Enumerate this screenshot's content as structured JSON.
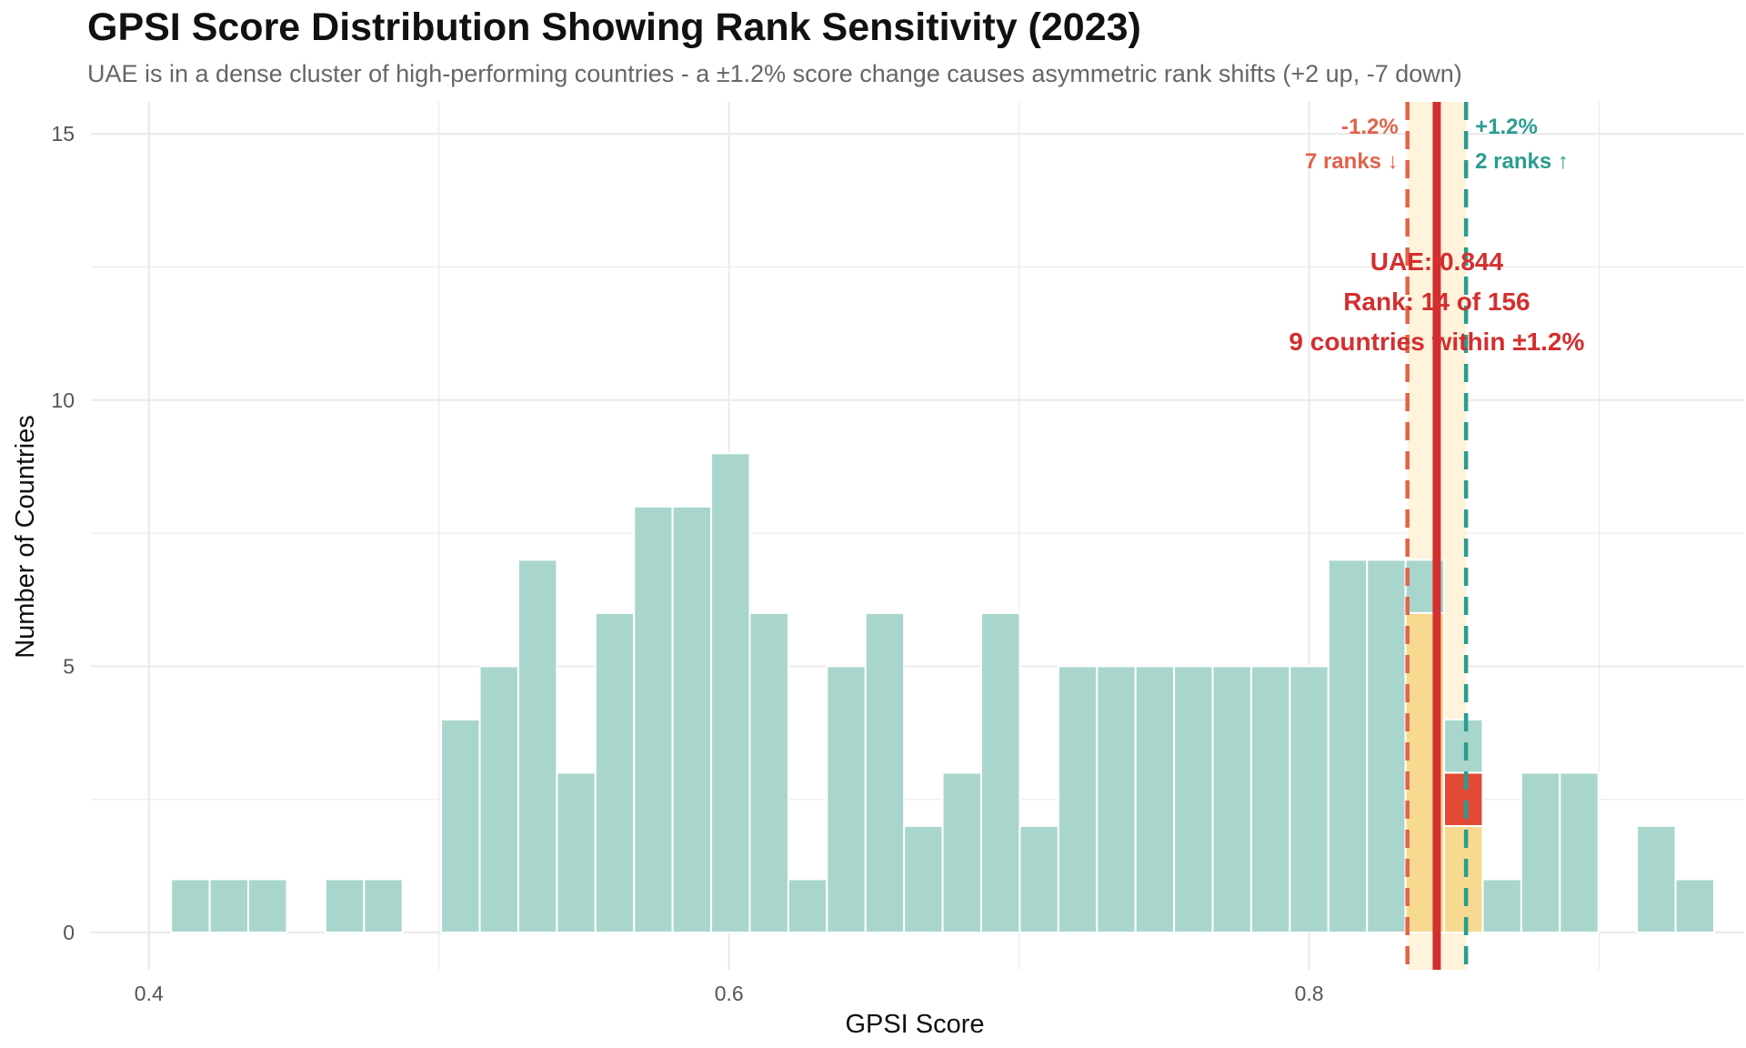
{
  "chart_data": {
    "type": "bar",
    "title": "GPSI Score Distribution Showing Rank Sensitivity (2023)",
    "subtitle": "UAE is in a dense cluster of high-performing countries - a ±1.2% score change causes asymmetric rank shifts (+2 up, -7 down)",
    "xlabel": "GPSI Score",
    "ylabel": "Number of Countries",
    "xlim": [
      0.38,
      0.95
    ],
    "ylim": [
      -0.7,
      15.6
    ],
    "xticks": [
      0.4,
      0.6,
      0.8
    ],
    "xtick_labels": [
      "0.4",
      "0.6",
      "0.8"
    ],
    "yticks": [
      0,
      5,
      10,
      15
    ],
    "ytick_labels": [
      "0",
      "5",
      "10",
      "15"
    ],
    "grid": true,
    "legend": "none",
    "bin_width": 0.0133,
    "bins": [
      {
        "x": 0.4143,
        "count": 1
      },
      {
        "x": 0.4276,
        "count": 1
      },
      {
        "x": 0.4409,
        "count": 1
      },
      {
        "x": 0.4675,
        "count": 1
      },
      {
        "x": 0.4808,
        "count": 1
      },
      {
        "x": 0.5074,
        "count": 4
      },
      {
        "x": 0.5207,
        "count": 5
      },
      {
        "x": 0.534,
        "count": 7
      },
      {
        "x": 0.5473,
        "count": 3
      },
      {
        "x": 0.5606,
        "count": 6
      },
      {
        "x": 0.5739,
        "count": 8
      },
      {
        "x": 0.5872,
        "count": 8
      },
      {
        "x": 0.6005,
        "count": 9
      },
      {
        "x": 0.6138,
        "count": 6
      },
      {
        "x": 0.6271,
        "count": 1
      },
      {
        "x": 0.6404,
        "count": 5
      },
      {
        "x": 0.6537,
        "count": 6
      },
      {
        "x": 0.667,
        "count": 2
      },
      {
        "x": 0.6803,
        "count": 3
      },
      {
        "x": 0.6936,
        "count": 6
      },
      {
        "x": 0.7069,
        "count": 2
      },
      {
        "x": 0.7202,
        "count": 5
      },
      {
        "x": 0.7335,
        "count": 5
      },
      {
        "x": 0.7468,
        "count": 5
      },
      {
        "x": 0.7601,
        "count": 5
      },
      {
        "x": 0.7734,
        "count": 5
      },
      {
        "x": 0.7867,
        "count": 5
      },
      {
        "x": 0.8,
        "count": 5
      },
      {
        "x": 0.8133,
        "count": 7
      },
      {
        "x": 0.8266,
        "count": 7
      },
      {
        "x": 0.8399,
        "count": 7
      },
      {
        "x": 0.8532,
        "count": 4
      },
      {
        "x": 0.8665,
        "count": 1
      },
      {
        "x": 0.8798,
        "count": 3
      },
      {
        "x": 0.8931,
        "count": 3
      },
      {
        "x": 0.9197,
        "count": 2
      },
      {
        "x": 0.933,
        "count": 1
      }
    ],
    "highlight_bins": [
      {
        "x": 0.8399,
        "count": 6
      },
      {
        "x": 0.8532,
        "count": 3
      }
    ],
    "uae_bin": {
      "x": 0.8532,
      "from": 2,
      "to": 3
    },
    "uae_score": 0.844,
    "band": [
      0.8339,
      0.8541
    ],
    "lower_line": 0.8339,
    "upper_line": 0.8541,
    "colors": {
      "bars": "#a9d6cc",
      "bar_edge": "#ffffff",
      "band": "#fff3dc",
      "highlight": "#ffd98a",
      "uae": "#d32f2f",
      "uae_bar": "#e04a35",
      "lower": "#e0634a",
      "upper": "#2a9d8f",
      "grid": "#ebebeb"
    },
    "annotations": {
      "lower_pct": "-1.2%",
      "lower_ranks": "7 ranks ↓",
      "upper_pct": "+1.2%",
      "upper_ranks": "2 ranks ↑",
      "uae_line1": "UAE: 0.844",
      "uae_line2": "Rank: 14 of 156",
      "uae_line3": "9 countries within ±1.2%"
    }
  }
}
